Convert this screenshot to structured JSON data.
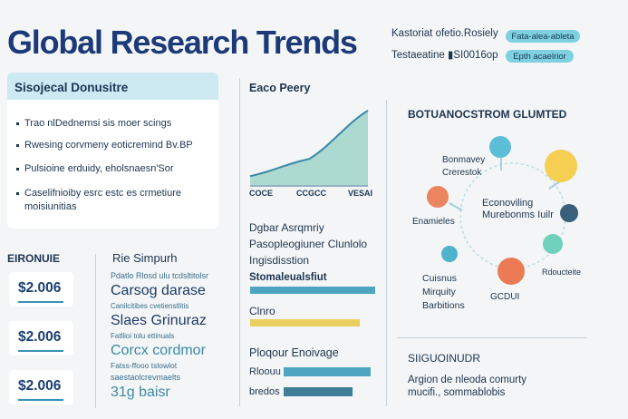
{
  "header": {
    "title": "Global Research Trends",
    "meta_1": "Kastoriat ofetio.Rosiely",
    "meta_2": "Testaeatine ▮SI0016op",
    "pill_1": "Fata-alea-ableta",
    "pill_2": "Epth acaelrior"
  },
  "summary_card": {
    "heading": "Sisojecal Donusitre",
    "bullets": [
      "Trao nlDednemsi sis moer scings",
      "Rwesing corvmeny eoticremind Bv.BP",
      "Pulsioine erduidy, eholsnaesn'Sor",
      "Caselifnioiby esrc estc es crmetiure moisiunitias"
    ]
  },
  "growth_chart": {
    "title": "Eaco Peery",
    "x_labels": [
      "COCE",
      "CCGCC",
      "VESAI"
    ]
  },
  "chart_data": {
    "type": "area",
    "title": "Eaco Peery",
    "categories": [
      "COCE",
      "CCGCC",
      "VESAI"
    ],
    "x": [
      0,
      0.5,
      1
    ],
    "values": [
      0.12,
      0.35,
      1.0
    ],
    "xlabel": "",
    "ylabel": "",
    "grid": false
  },
  "metrics": {
    "heading": "EIRONUIE",
    "items": [
      "$2.006",
      "$2.006",
      "$2.006"
    ]
  },
  "study_panel": {
    "heading": "Rie Simpurh",
    "lines": [
      {
        "text": "Pdatlo Rlosd ulu tcdsltitolsr",
        "size": 9,
        "color": "#3a6f8e",
        "bold": false
      },
      {
        "text": "Carsog darase",
        "size": 16,
        "color": "#1c3a67",
        "bold": false
      },
      {
        "text": "Canilcitibes cvetienstlitis",
        "size": 8,
        "color": "#3a6f8e",
        "bold": false
      },
      {
        "text": "Slaes Grinuraz",
        "size": 16,
        "color": "#1c3a67",
        "bold": false
      },
      {
        "text": "Fatllioi tolu ettinuals",
        "size": 8,
        "color": "#3a6f8e",
        "bold": false
      },
      {
        "text": "Corcx cordmor",
        "size": 16,
        "color": "#3c8aa5",
        "bold": false
      },
      {
        "text": "Fatss-ffooo tslowlot",
        "size": 8.5,
        "color": "#3a6f8e",
        "bold": false
      },
      {
        "text": "saestaolcrevmaelts",
        "size": 9,
        "color": "#3a6f8e",
        "bold": false
      },
      {
        "text": "31g baisr",
        "size": 16,
        "color": "#3c8aa5",
        "bold": false
      }
    ]
  },
  "assembly": {
    "lines": [
      "Dgbar Asrqmriy",
      "Pasopleogiuner Clunlolo",
      "Ingisdisstion",
      "Stomaleualsfiut"
    ]
  },
  "bars_1": [
    {
      "label": "Stomaleualsfiut",
      "value": 1.0,
      "color": "#4ea5c2"
    },
    {
      "label": "Clnro",
      "value": 0.88,
      "color": "#e9cf60"
    }
  ],
  "bars_2": {
    "heading": "Ploqour Enoivage",
    "items": [
      {
        "label": "Rloouu",
        "value": 0.84,
        "color": "#4ea5c2"
      },
      {
        "label": "bredos",
        "value": 0.67,
        "color": "#3f7e96"
      }
    ]
  },
  "network": {
    "heading": "BOTUANOCSTROM GLUMTED",
    "center_label": "Econoviling Murebonms Iuilr",
    "labels": [
      "Bonmavey Crerestok",
      "Enamieles",
      "Cuisnus Mirquity Barbitions",
      "GCDUI",
      "Rdoucteite"
    ]
  },
  "footer": {
    "heading": "SIIGUOINUDR",
    "text": "Argion de nleoda comurty mucifi., sommablobis"
  },
  "colors": {
    "navy": "#1c3a78",
    "teal": "#4ea5c2",
    "yellow": "#e9cf60",
    "orange": "#ea7a52",
    "dark_node": "#3a5f7a",
    "card_header": "#cde9f1",
    "pill": "#7fd0e0"
  }
}
